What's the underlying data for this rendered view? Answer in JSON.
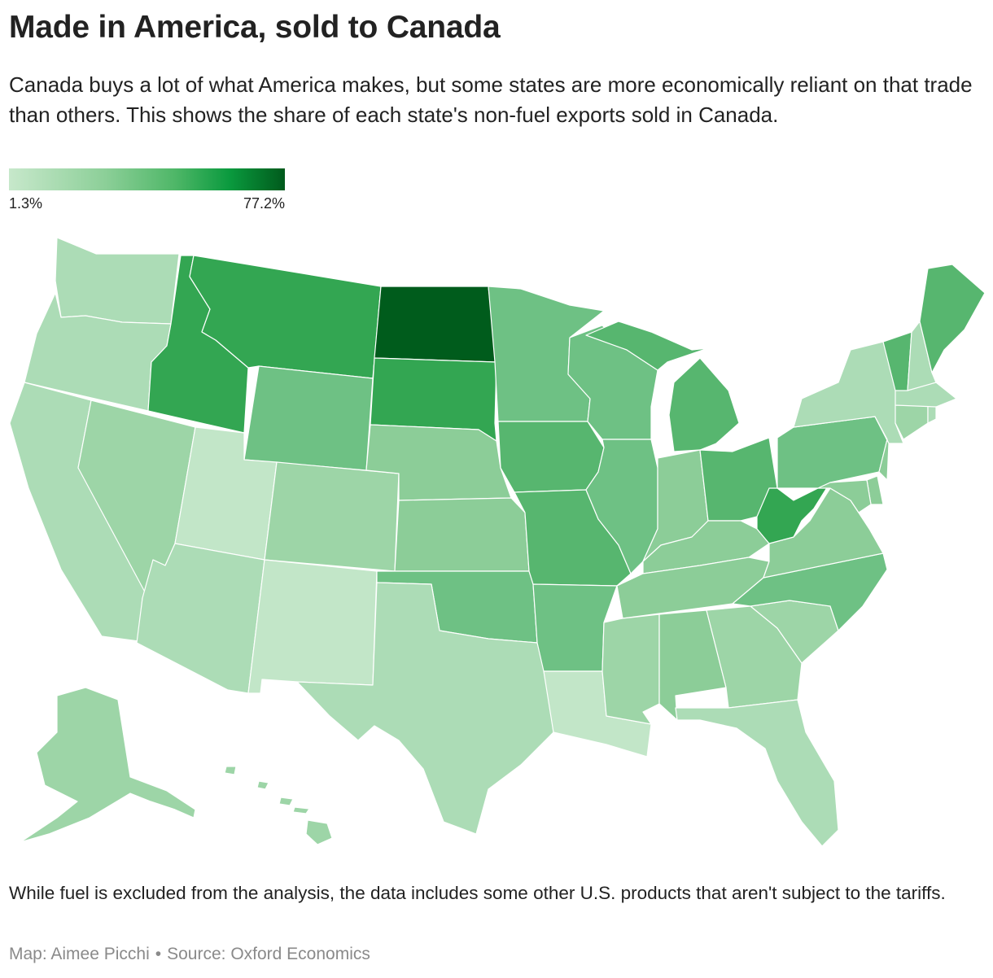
{
  "header": {
    "title": "Made in America, sold to Canada",
    "subtitle": "Canada buys a lot of what America makes, but some states are more economically reliant on that trade than others. This shows the share of each state's non-fuel exports sold in Canada."
  },
  "legend": {
    "min_label": "1.3%",
    "max_label": "77.2%",
    "colors": [
      "#c7e8cb",
      "#8ccf98",
      "#4fb768",
      "#0a9a3e",
      "#005a1c"
    ]
  },
  "map": {
    "type": "choropleth",
    "region": "United States",
    "color_scale": {
      "very_light": "#c2e6c8",
      "light": "#acdcb6",
      "light_medium": "#9dd5a7",
      "medium": "#8ccd98",
      "medium_dark": "#6ec184",
      "dark": "#57b66f",
      "darker": "#33a652",
      "darkest": "#005c1c"
    },
    "states": [
      {
        "name": "Washington",
        "shade": "light"
      },
      {
        "name": "Oregon",
        "shade": "light"
      },
      {
        "name": "California",
        "shade": "light"
      },
      {
        "name": "Nevada",
        "shade": "light_medium"
      },
      {
        "name": "Idaho",
        "shade": "darker"
      },
      {
        "name": "Montana",
        "shade": "darker"
      },
      {
        "name": "Wyoming",
        "shade": "medium_dark"
      },
      {
        "name": "Utah",
        "shade": "very_light"
      },
      {
        "name": "Arizona",
        "shade": "light"
      },
      {
        "name": "Colorado",
        "shade": "light_medium"
      },
      {
        "name": "New Mexico",
        "shade": "very_light"
      },
      {
        "name": "North Dakota",
        "shade": "darkest"
      },
      {
        "name": "South Dakota",
        "shade": "darker"
      },
      {
        "name": "Nebraska",
        "shade": "medium"
      },
      {
        "name": "Kansas",
        "shade": "medium"
      },
      {
        "name": "Oklahoma",
        "shade": "medium_dark"
      },
      {
        "name": "Texas",
        "shade": "light"
      },
      {
        "name": "Minnesota",
        "shade": "medium_dark"
      },
      {
        "name": "Iowa",
        "shade": "dark"
      },
      {
        "name": "Missouri",
        "shade": "dark"
      },
      {
        "name": "Arkansas",
        "shade": "medium_dark"
      },
      {
        "name": "Louisiana",
        "shade": "very_light"
      },
      {
        "name": "Wisconsin",
        "shade": "medium_dark"
      },
      {
        "name": "Illinois",
        "shade": "medium_dark"
      },
      {
        "name": "Michigan",
        "shade": "dark"
      },
      {
        "name": "Indiana",
        "shade": "medium"
      },
      {
        "name": "Ohio",
        "shade": "dark"
      },
      {
        "name": "Kentucky",
        "shade": "medium"
      },
      {
        "name": "Tennessee",
        "shade": "medium"
      },
      {
        "name": "Mississippi",
        "shade": "light_medium"
      },
      {
        "name": "Alabama",
        "shade": "medium"
      },
      {
        "name": "Georgia",
        "shade": "light_medium"
      },
      {
        "name": "Florida",
        "shade": "light"
      },
      {
        "name": "South Carolina",
        "shade": "light_medium"
      },
      {
        "name": "North Carolina",
        "shade": "medium_dark"
      },
      {
        "name": "Virginia",
        "shade": "medium"
      },
      {
        "name": "West Virginia",
        "shade": "darker"
      },
      {
        "name": "Pennsylvania",
        "shade": "medium_dark"
      },
      {
        "name": "New York",
        "shade": "light"
      },
      {
        "name": "Vermont",
        "shade": "dark"
      },
      {
        "name": "New Hampshire",
        "shade": "light"
      },
      {
        "name": "Maine",
        "shade": "dark"
      },
      {
        "name": "Massachusetts",
        "shade": "light"
      },
      {
        "name": "Rhode Island",
        "shade": "light"
      },
      {
        "name": "Connecticut",
        "shade": "light_medium"
      },
      {
        "name": "New Jersey",
        "shade": "medium"
      },
      {
        "name": "Delaware",
        "shade": "medium"
      },
      {
        "name": "Maryland",
        "shade": "medium"
      },
      {
        "name": "Alaska",
        "shade": "light_medium"
      },
      {
        "name": "Hawaii",
        "shade": "light_medium"
      }
    ]
  },
  "footer": {
    "note": "While fuel is excluded from the analysis, the data includes some other U.S. products that aren't subject to the tariffs.",
    "credit_map": "Map: Aimee Picchi",
    "credit_separator": "•",
    "credit_source": "Source: Oxford Economics"
  }
}
